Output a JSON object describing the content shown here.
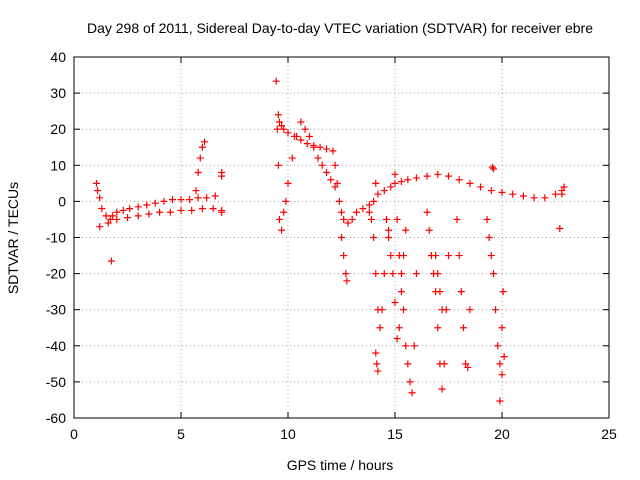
{
  "chart_data": {
    "type": "scatter",
    "title": "Day 298 of 2011, Sidereal Day-to-day VTEC variation (SDTVAR) for receiver ebre",
    "xlabel": "GPS time / hours",
    "ylabel": "SDTVAR / TECUs",
    "xlim": [
      0,
      25
    ],
    "ylim": [
      -60,
      40
    ],
    "xticks": [
      "0",
      "5",
      "10",
      "15",
      "20",
      "25"
    ],
    "yticks": [
      "40",
      "30",
      "20",
      "10",
      "0",
      "-10",
      "-20",
      "-30",
      "-40",
      "-50",
      "-60"
    ],
    "grid": true,
    "marker": "+",
    "color": "#ff0000",
    "series": [
      {
        "name": "SDTVAR",
        "x": [
          1.05,
          1.1,
          1.2,
          1.3,
          1.5,
          1.7,
          1.8,
          2.0,
          2.3,
          2.6,
          3.0,
          3.4,
          3.8,
          4.2,
          4.6,
          5.0,
          5.4,
          5.8,
          6.2,
          6.6,
          6.9,
          1.2,
          1.6,
          2.0,
          2.5,
          3.0,
          3.5,
          4.0,
          4.5,
          5.0,
          5.5,
          6.0,
          6.5,
          6.9,
          1.75,
          5.7,
          5.8,
          5.9,
          6.0,
          6.1,
          6.9,
          6.9,
          9.45,
          9.5,
          9.55,
          9.6,
          9.7,
          9.8,
          9.9,
          10.0,
          10.2,
          10.4,
          10.6,
          10.8,
          11.0,
          11.2,
          11.4,
          11.6,
          11.8,
          12.0,
          12.2,
          9.55,
          9.6,
          9.7,
          9.8,
          10.0,
          10.3,
          10.6,
          10.9,
          11.2,
          11.5,
          11.8,
          12.1,
          12.2,
          12.3,
          12.4,
          12.5,
          12.6,
          12.8,
          13.0,
          13.2,
          13.5,
          13.8,
          14.0,
          14.2,
          14.5,
          14.8,
          15.0,
          15.3,
          15.6,
          16.0,
          16.5,
          17.0,
          17.5,
          18.0,
          18.5,
          19.0,
          19.5,
          20.0,
          20.5,
          21.0,
          21.5,
          22.0,
          22.5,
          22.8,
          12.5,
          12.6,
          12.7,
          12.75,
          13.8,
          13.9,
          14.0,
          14.1,
          14.2,
          14.3,
          14.4,
          14.5,
          14.7,
          14.1,
          14.15,
          14.2,
          14.6,
          14.7,
          14.8,
          14.9,
          15.0,
          15.1,
          15.2,
          15.3,
          15.4,
          15.5,
          15.1,
          15.2,
          15.3,
          15.4,
          15.5,
          15.6,
          15.7,
          15.8,
          15.9,
          16.0,
          16.5,
          16.6,
          16.7,
          16.8,
          16.9,
          17.0,
          17.1,
          17.2,
          17.3,
          17.4,
          17.5,
          16.9,
          17.0,
          17.1,
          17.2,
          17.9,
          18.0,
          18.1,
          18.2,
          18.3,
          18.4,
          18.5,
          19.3,
          19.4,
          19.5,
          19.6,
          19.7,
          19.8,
          19.9,
          20.0,
          20.1,
          19.9,
          20.0,
          20.05,
          19.55,
          19.6,
          14.1,
          15.0,
          22.7,
          22.8,
          22.9
        ],
        "y": [
          5,
          3,
          1,
          -2,
          -4,
          -5,
          -4,
          -3,
          -2.5,
          -2,
          -1.5,
          -1,
          -0.5,
          0,
          0.5,
          0.5,
          0.5,
          1,
          1,
          1.5,
          7,
          -7,
          -6,
          -5,
          -4.5,
          -4,
          -3.5,
          -3,
          -3,
          -2.5,
          -2.5,
          -2,
          -2,
          -2.5,
          -16.5,
          3,
          8,
          12,
          15,
          16.5,
          8,
          -3,
          33.3,
          20,
          10,
          -5,
          -8,
          -3,
          0,
          5,
          12,
          18,
          22,
          20,
          18,
          15,
          12,
          10,
          8,
          6,
          4,
          24,
          22,
          21,
          20,
          19,
          18,
          17,
          16,
          15.5,
          15,
          14.5,
          14,
          10,
          5,
          0,
          -3,
          -5,
          -6,
          -5,
          -3,
          -2,
          -1,
          0,
          2,
          3,
          4,
          5,
          5.5,
          6,
          6.5,
          7,
          7.5,
          7,
          6,
          5,
          4,
          3,
          2.5,
          2,
          1.5,
          1,
          1,
          2,
          3,
          -10,
          -15,
          -20,
          -22,
          -3,
          -5,
          -10,
          -20,
          -30,
          -35,
          -30,
          -20,
          -8,
          -42,
          -45,
          -47,
          -5,
          -10,
          -15,
          -20,
          -28,
          -38,
          -35,
          -25,
          -15,
          -8,
          -5,
          -15,
          -20,
          -30,
          -40,
          -45,
          -50,
          -53,
          -40,
          -20,
          -3,
          -8,
          -15,
          -20,
          -25,
          -35,
          -45,
          -52,
          -45,
          -30,
          -15,
          -15,
          -20,
          -25,
          -30,
          -5,
          -15,
          -25,
          -35,
          -45,
          -46,
          -30,
          -5,
          -10,
          -15,
          -20,
          -30,
          -40,
          -45,
          -48,
          -43,
          -55.3,
          -35,
          -25,
          9.5,
          9,
          5,
          7.5,
          -7.5,
          2,
          4
        ]
      }
    ]
  }
}
